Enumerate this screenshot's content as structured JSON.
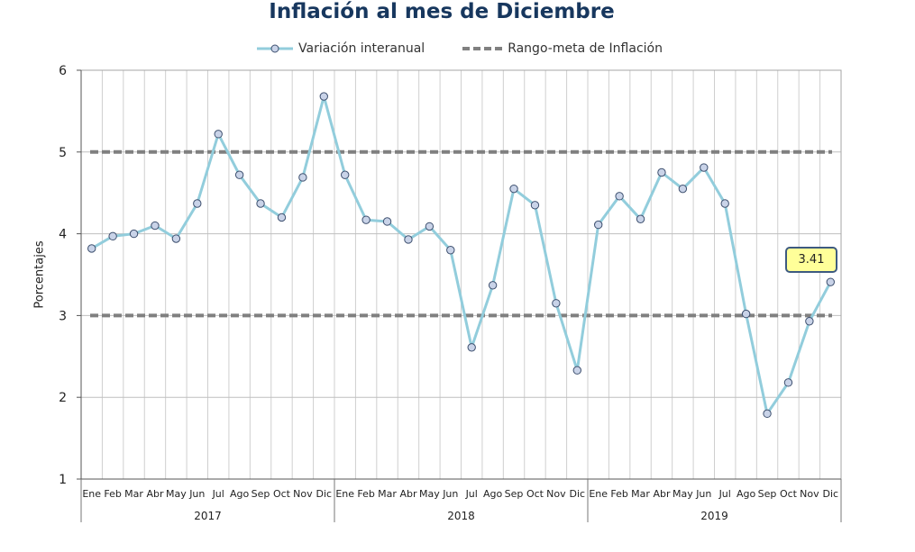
{
  "chart_data": {
    "type": "line",
    "title": "Inflación al mes de Diciembre",
    "ylabel": "Porcentajes",
    "ylim": [
      1,
      6
    ],
    "yticks": [
      "1",
      "2",
      "3",
      "4",
      "5",
      "6"
    ],
    "months": [
      "Ene",
      "Feb",
      "Mar",
      "Abr",
      "May",
      "Jun",
      "Jul",
      "Ago",
      "Sep",
      "Oct",
      "Nov",
      "Dic"
    ],
    "years": [
      "2017",
      "2018",
      "2019"
    ],
    "series": [
      {
        "name": "Variación interanual",
        "color": "#92cddc",
        "values": [
          3.82,
          3.97,
          4.0,
          4.1,
          3.94,
          4.37,
          5.22,
          4.72,
          4.37,
          4.2,
          4.69,
          5.68,
          4.72,
          4.17,
          4.15,
          3.93,
          4.09,
          3.8,
          2.61,
          3.37,
          4.55,
          4.35,
          3.15,
          2.33,
          4.11,
          4.46,
          4.18,
          4.75,
          4.55,
          4.81,
          4.37,
          3.02,
          1.8,
          2.18,
          2.93,
          3.41
        ]
      },
      {
        "name": "Rango-meta de Inflación",
        "color": "#808080",
        "upper": 5,
        "lower": 3
      }
    ],
    "callout": "3.41",
    "grid": true,
    "legend_position": "top"
  }
}
